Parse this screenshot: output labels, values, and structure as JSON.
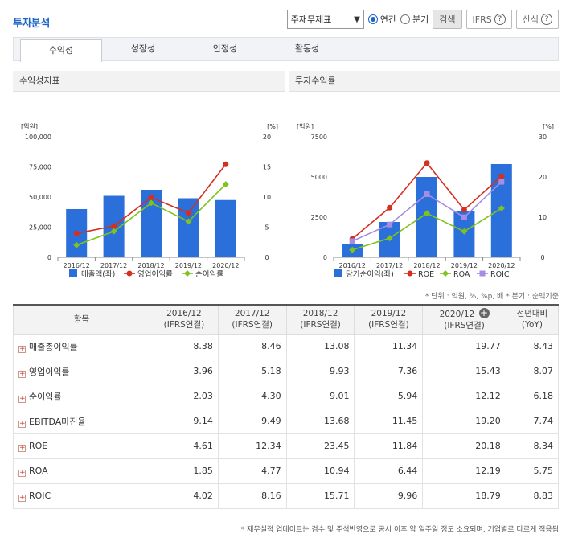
{
  "header": {
    "title": "투자분석",
    "select_value": "주재무제표",
    "radio_annual": "연간",
    "radio_quarter": "분기",
    "search_label": "검색",
    "ifrs_label": "IFRS",
    "formula_label": "산식",
    "help_glyph": "?"
  },
  "tabs": [
    "수익성",
    "성장성",
    "안정성",
    "활동성"
  ],
  "colors": {
    "bar": "#2b6fdb",
    "red": "#d42f20",
    "green": "#7fc31c",
    "purple": "#a58de3"
  },
  "chart_data": [
    {
      "type": "bar",
      "title": "수익성지표",
      "left_unit": "[억원]",
      "right_unit": "[%]",
      "categories": [
        "2016/12",
        "2017/12",
        "2018/12",
        "2019/12",
        "2020/12"
      ],
      "left_ticks": [
        "100,000",
        "75,000",
        "50,000",
        "25,000",
        "0"
      ],
      "right_ticks": [
        "20",
        "15",
        "10",
        "5",
        "0"
      ],
      "ylim": [
        0,
        100000
      ],
      "y2lim": [
        0,
        20
      ],
      "series": [
        {
          "name": "매출액(좌)",
          "type": "bar",
          "values": [
            40000,
            51000,
            56000,
            49000,
            47500
          ]
        },
        {
          "name": "영업이익률",
          "type": "line",
          "color": "red",
          "values": [
            3.96,
            5.18,
            9.93,
            7.36,
            15.43
          ]
        },
        {
          "name": "순이익률",
          "type": "line",
          "color": "green",
          "values": [
            2.03,
            4.3,
            9.01,
            5.94,
            12.12
          ]
        }
      ]
    },
    {
      "type": "bar",
      "title": "투자수익률",
      "left_unit": "[억원]",
      "right_unit": "[%]",
      "categories": [
        "2016/12",
        "2017/12",
        "2018/12",
        "2019/12",
        "2020/12"
      ],
      "left_ticks": [
        "7500",
        "5000",
        "2500",
        "0"
      ],
      "right_ticks": [
        "30",
        "20",
        "10",
        "0"
      ],
      "ylim": [
        0,
        7500
      ],
      "y2lim": [
        0,
        30
      ],
      "series": [
        {
          "name": "당기순이익(좌)",
          "type": "bar",
          "values": [
            800,
            2200,
            5000,
            2900,
            5800
          ]
        },
        {
          "name": "ROE",
          "type": "line",
          "color": "red",
          "values": [
            4.61,
            12.34,
            23.45,
            11.84,
            20.18
          ]
        },
        {
          "name": "ROA",
          "type": "line",
          "color": "green",
          "values": [
            1.85,
            4.77,
            10.94,
            6.44,
            12.19
          ]
        },
        {
          "name": "ROIC",
          "type": "line",
          "color": "purple",
          "values": [
            4.02,
            8.16,
            15.71,
            9.96,
            18.79
          ]
        }
      ]
    }
  ],
  "unit_note": "* 단위 : 억원, %, %p, 배   * 분기 : 순액기준",
  "table": {
    "head_item": "항목",
    "cols": [
      {
        "y": "2016/12",
        "s": "(IFRS연결)"
      },
      {
        "y": "2017/12",
        "s": "(IFRS연결)"
      },
      {
        "y": "2018/12",
        "s": "(IFRS연결)"
      },
      {
        "y": "2019/12",
        "s": "(IFRS연결)"
      },
      {
        "y": "2020/12",
        "s": "(IFRS연결)"
      }
    ],
    "yoy_a": "전년대비",
    "yoy_b": "(YoY)",
    "rows": [
      {
        "label": "매출총이익률",
        "v": [
          "8.38",
          "8.46",
          "13.08",
          "11.34",
          "19.77",
          "8.43"
        ]
      },
      {
        "label": "영업이익률",
        "v": [
          "3.96",
          "5.18",
          "9.93",
          "7.36",
          "15.43",
          "8.07"
        ]
      },
      {
        "label": "순이익률",
        "v": [
          "2.03",
          "4.30",
          "9.01",
          "5.94",
          "12.12",
          "6.18"
        ]
      },
      {
        "label": "EBITDA마진율",
        "v": [
          "9.14",
          "9.49",
          "13.68",
          "11.45",
          "19.20",
          "7.74"
        ]
      },
      {
        "label": "ROE",
        "v": [
          "4.61",
          "12.34",
          "23.45",
          "11.84",
          "20.18",
          "8.34"
        ]
      },
      {
        "label": "ROA",
        "v": [
          "1.85",
          "4.77",
          "10.94",
          "6.44",
          "12.19",
          "5.75"
        ]
      },
      {
        "label": "ROIC",
        "v": [
          "4.02",
          "8.16",
          "15.71",
          "9.96",
          "18.79",
          "8.83"
        ]
      }
    ]
  },
  "footnote": "* 재무실적 업데이트는 검수 및 주석반영으로 공시 이후 약 일주일 정도 소요되며, 기업별로 다르게 적용됨"
}
